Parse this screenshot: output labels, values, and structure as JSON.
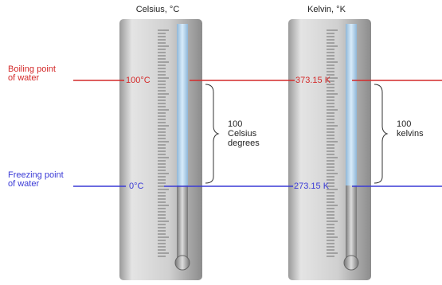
{
  "thermometers": [
    {
      "title": "Celsius, °C",
      "boiling": "100°C",
      "freezing": "0°C",
      "span": [
        "100",
        "Celsius",
        "degrees"
      ]
    },
    {
      "title": "Kelvin, °K",
      "boiling": "373.15 K",
      "freezing": "273.15 K",
      "span": [
        "100",
        "kelvins"
      ]
    }
  ],
  "boiling_label": [
    "Boiling point",
    "of water"
  ],
  "freezing_label": [
    "Freezing point",
    "of water"
  ]
}
